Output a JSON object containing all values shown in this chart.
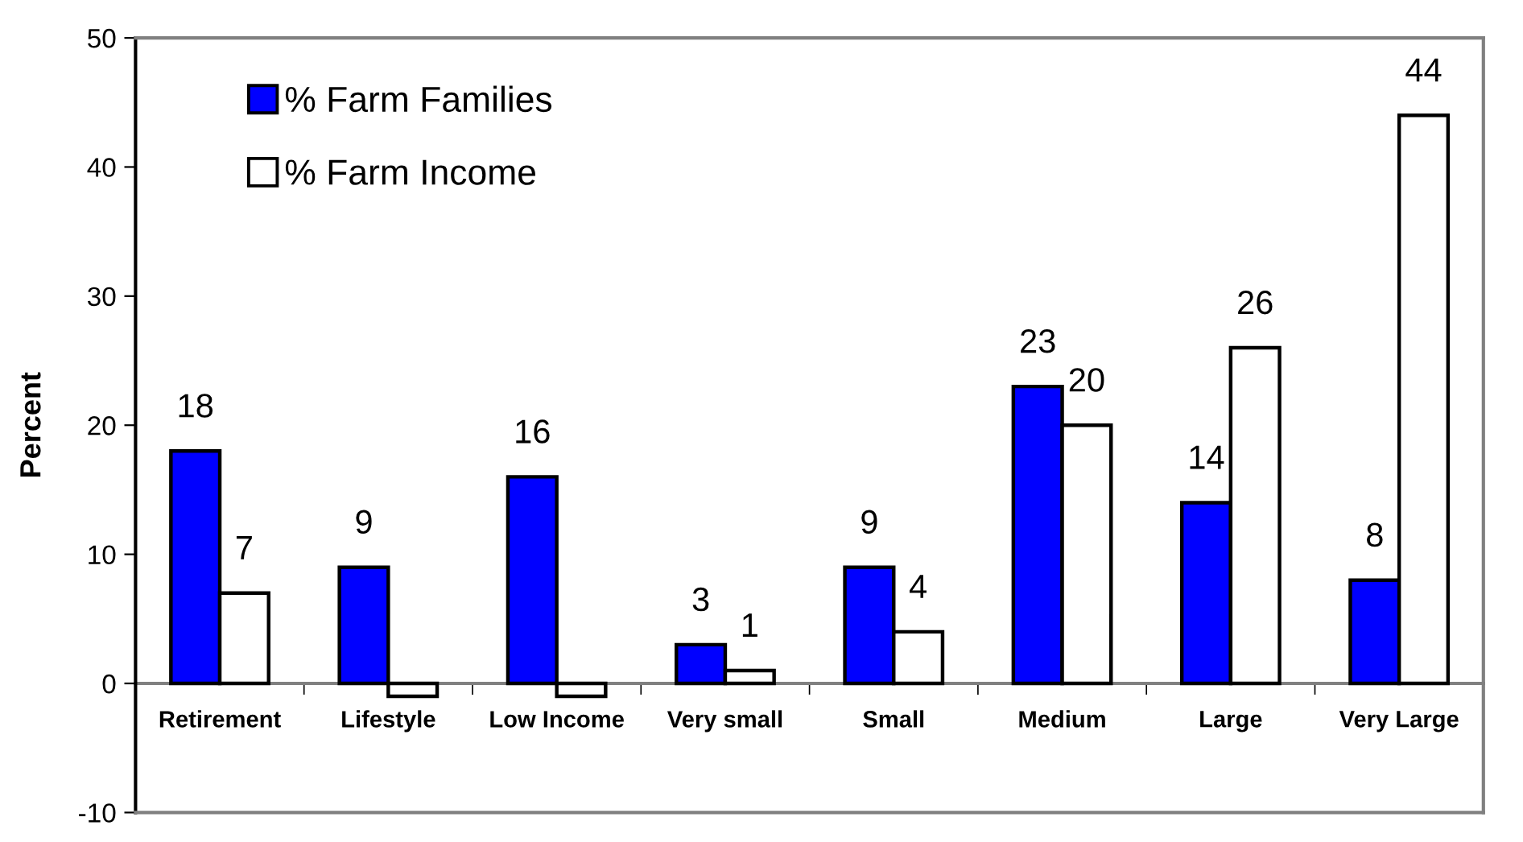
{
  "chart_data": {
    "type": "bar",
    "ylabel": "Percent",
    "categories": [
      "Retirement",
      "Lifestyle",
      "Low Income",
      "Very small",
      "Small",
      "Medium",
      "Large",
      "Very Large"
    ],
    "series": [
      {
        "name": "% Farm Families",
        "color": "#0000ff",
        "values": [
          18,
          9,
          16,
          3,
          9,
          23,
          14,
          8
        ],
        "value_labels": [
          "18",
          "9",
          "16",
          "3",
          "9",
          "23",
          "14",
          "8"
        ]
      },
      {
        "name": "% Farm Income",
        "color": "#ffffff",
        "values": [
          7,
          -1,
          -1,
          1,
          4,
          20,
          26,
          44
        ],
        "value_labels": [
          "7",
          null,
          null,
          "1",
          "4",
          "20",
          "26",
          "44"
        ]
      }
    ],
    "ylim": [
      -10,
      50
    ],
    "yticks": [
      -10,
      0,
      10,
      20,
      30,
      40,
      50
    ],
    "grid": false,
    "legend": "top left"
  }
}
